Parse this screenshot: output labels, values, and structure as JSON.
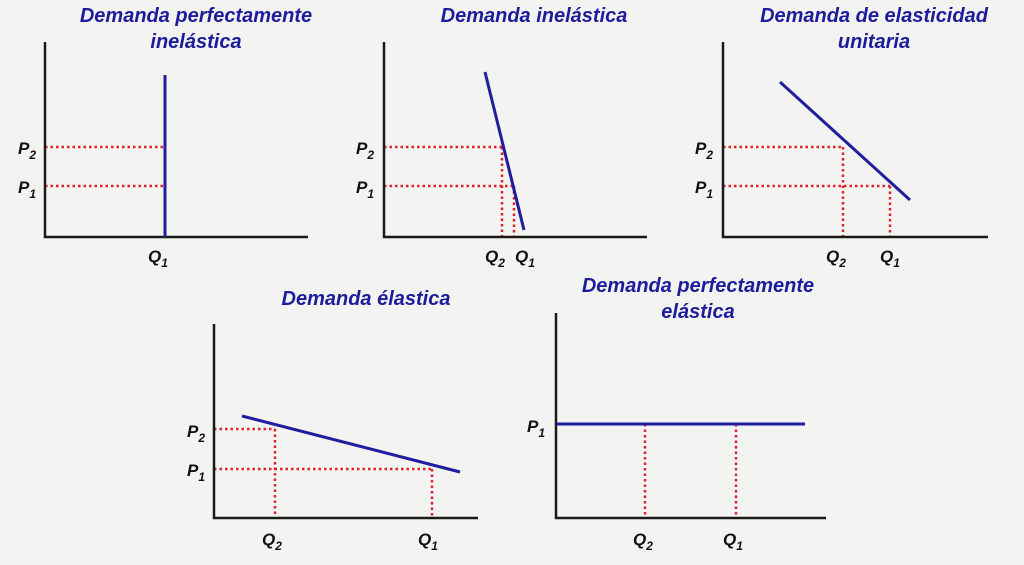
{
  "colors": {
    "background": "#f3f3f1",
    "title": "#1c1c9c",
    "curve": "#1e1e9e",
    "guide": "#e0202a",
    "axis": "#1a1a1a",
    "label": "#111111"
  },
  "panels": [
    {
      "id": "perfectly-inelastic",
      "title_lines": [
        "Demanda perfectamente",
        "inelástica"
      ],
      "price_labels": [
        {
          "base": "P",
          "sub": "2"
        },
        {
          "base": "P",
          "sub": "1"
        }
      ],
      "quantity_labels": [
        {
          "base": "Q",
          "sub": "1"
        }
      ]
    },
    {
      "id": "inelastic",
      "title_lines": [
        "Demanda inelástica"
      ],
      "price_labels": [
        {
          "base": "P",
          "sub": "2"
        },
        {
          "base": "P",
          "sub": "1"
        }
      ],
      "quantity_labels": [
        {
          "base": "Q",
          "sub": "2"
        },
        {
          "base": "Q",
          "sub": "1"
        }
      ]
    },
    {
      "id": "unit-elastic",
      "title_lines": [
        "Demanda de elasticidad",
        "unitaria"
      ],
      "price_labels": [
        {
          "base": "P",
          "sub": "2"
        },
        {
          "base": "P",
          "sub": "1"
        }
      ],
      "quantity_labels": [
        {
          "base": "Q",
          "sub": "2"
        },
        {
          "base": "Q",
          "sub": "1"
        }
      ]
    },
    {
      "id": "elastic",
      "title_lines": [
        "Demanda élastica"
      ],
      "price_labels": [
        {
          "base": "P",
          "sub": "2"
        },
        {
          "base": "P",
          "sub": "1"
        }
      ],
      "quantity_labels": [
        {
          "base": "Q",
          "sub": "2"
        },
        {
          "base": "Q",
          "sub": "1"
        }
      ]
    },
    {
      "id": "perfectly-elastic",
      "title_lines": [
        "Demanda perfectamente",
        "elástica"
      ],
      "price_labels": [
        {
          "base": "P",
          "sub": "1"
        }
      ],
      "quantity_labels": [
        {
          "base": "Q",
          "sub": "2"
        },
        {
          "base": "Q",
          "sub": "1"
        }
      ]
    }
  ]
}
